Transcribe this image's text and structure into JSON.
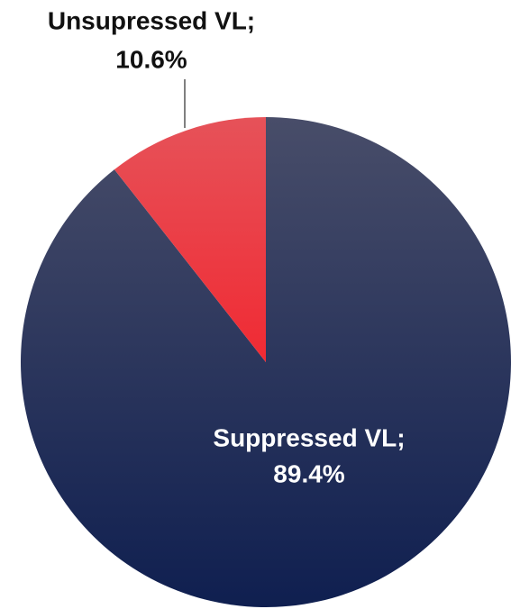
{
  "chart_data": {
    "type": "pie",
    "categories": [
      "Suppressed VL;",
      "Unsupressed VL;"
    ],
    "values": [
      89.4,
      10.6
    ],
    "value_labels": [
      "89.4%",
      "10.6%"
    ],
    "colors": [
      "#1f2a55",
      "#ec3d44"
    ]
  }
}
